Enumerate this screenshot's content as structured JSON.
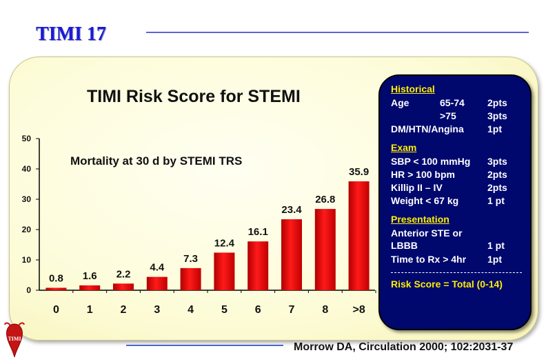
{
  "header": {
    "title": "TIMI 17"
  },
  "chart_data": {
    "type": "bar",
    "title": "TIMI Risk Score for STEMI",
    "subtitle": "Mortality at 30 d by STEMI TRS",
    "categories": [
      "0",
      "1",
      "2",
      "3",
      "4",
      "5",
      "6",
      "7",
      "8",
      ">8"
    ],
    "values": [
      0.8,
      1.6,
      2.2,
      4.4,
      7.3,
      12.4,
      16.1,
      23.4,
      26.8,
      35.9
    ],
    "data_labels": [
      "0.8",
      "1.6",
      "2.2",
      "4.4",
      "7.3",
      "12.4",
      "16.1",
      "23.4",
      "26.8",
      "35.9"
    ],
    "y_ticks": [
      "0",
      "10",
      "20",
      "30",
      "40",
      "50"
    ],
    "ylim": [
      0,
      50
    ],
    "xlabel": "",
    "ylabel": "",
    "grid": false,
    "bar_color": "#e00000"
  },
  "sidebar": {
    "historical_heading": "Historical",
    "age_label": "Age",
    "age_1_range": "65-74",
    "age_1_pts": "2pts",
    "age_2_range": ">75",
    "age_2_pts": "3pts",
    "dm_label": "DM/HTN/Angina",
    "dm_pts": "1pt",
    "exam_heading": "Exam",
    "sbp_label": "SBP < 100 mmHg",
    "sbp_pts": "3pts",
    "hr_label": "HR > 100 bpm",
    "hr_pts": "2pts",
    "killip_label": "Killip II – IV",
    "killip_pts": "2pts",
    "weight_label": "Weight < 67 kg",
    "weight_pts": "1 pt",
    "presentation_heading": "Presentation",
    "ant_line1": "Anterior STE or",
    "ant_line2": "LBBB",
    "ant_pts": "1 pt",
    "time_label": "Time to Rx > 4hr",
    "time_pts": "1pt",
    "total_label": "Risk Score = Total (0-14)"
  },
  "footer": {
    "citation": "Morrow DA, Circulation 2000; 102:2031-37",
    "logo_text": "TIMI"
  }
}
